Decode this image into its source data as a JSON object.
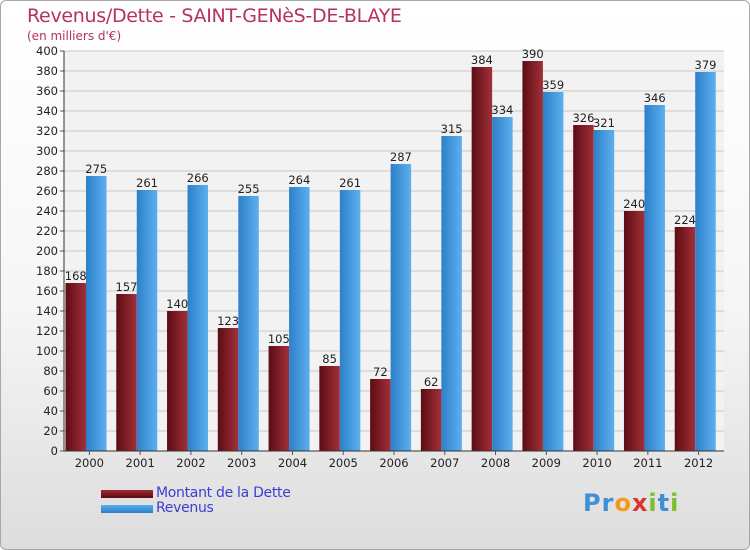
{
  "header": {
    "title": "Revenus/Dette - SAINT-GENèS-DE-BLAYE",
    "subtitle": "(en milliers d'€)"
  },
  "logo": {
    "text": "Proxiti",
    "letters": [
      {
        "ch": "P",
        "color": "#3f8fd6"
      },
      {
        "ch": "r",
        "color": "#3f8fd6"
      },
      {
        "ch": "o",
        "color": "#f39a1e"
      },
      {
        "ch": "x",
        "color": "#e0322d"
      },
      {
        "ch": "i",
        "color": "#7bbf2a"
      },
      {
        "ch": "t",
        "color": "#3f8fd6"
      },
      {
        "ch": "i",
        "color": "#7bbf2a"
      }
    ]
  },
  "chart_data": {
    "type": "bar",
    "title": "Revenus/Dette - SAINT-GENèS-DE-BLAYE",
    "subtitle": "(en milliers d'€)",
    "categories": [
      "2000",
      "2001",
      "2002",
      "2003",
      "2004",
      "2005",
      "2006",
      "2007",
      "2008",
      "2009",
      "2010",
      "2011",
      "2012"
    ],
    "series": [
      {
        "name": "Montant de la Dette",
        "color": "#7a1520",
        "values": [
          168,
          157,
          140,
          123,
          105,
          85,
          72,
          62,
          384,
          390,
          326,
          240,
          224
        ]
      },
      {
        "name": "Revenus",
        "color": "#3a93dd",
        "values": [
          275,
          261,
          266,
          255,
          264,
          261,
          287,
          315,
          334,
          359,
          321,
          346,
          379
        ]
      }
    ],
    "ylim": [
      0,
      400
    ],
    "ytick_step": 20,
    "grid": true,
    "legend": "bottom-left"
  }
}
